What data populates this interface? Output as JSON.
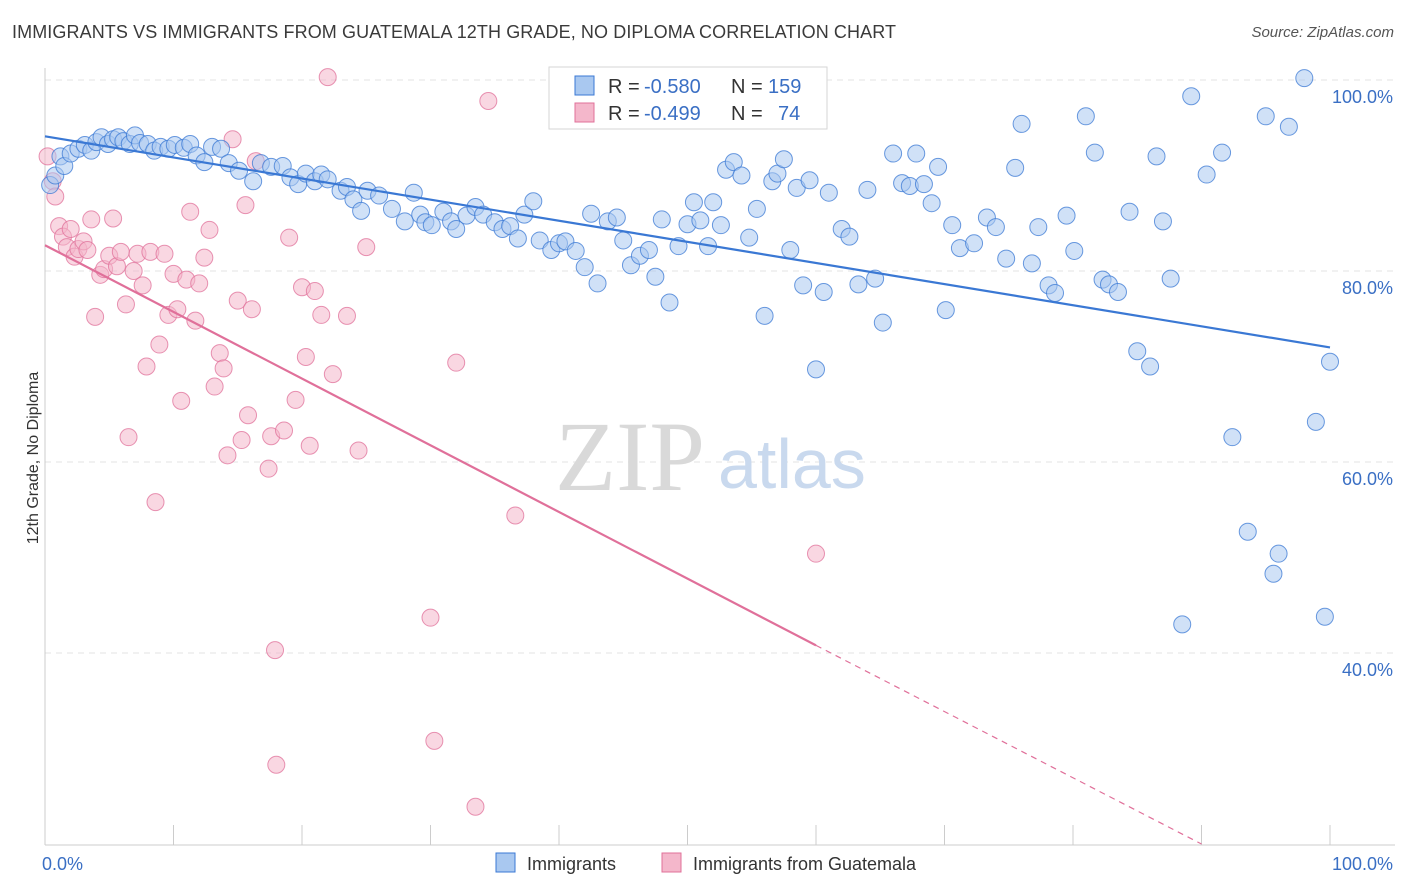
{
  "title": "IMMIGRANTS VS IMMIGRANTS FROM GUATEMALA 12TH GRADE, NO DIPLOMA CORRELATION CHART",
  "source": "Source: ZipAtlas.com",
  "watermark": {
    "zip": "ZIP",
    "atlas": "atlas"
  },
  "colors": {
    "blue": "#3a78d4",
    "blue_fill": "#a9c8f0",
    "pink": "#e0709a",
    "pink_fill": "#f4b7cb",
    "grid": "#e3e3e3",
    "axis_label": "#3a6fc4"
  },
  "legend_top": {
    "rows": [
      {
        "r_label": "R =",
        "r_value": "-0.580",
        "n_label": "N =",
        "n_value": "159"
      },
      {
        "r_label": "R =",
        "r_value": "-0.499",
        "n_label": "N =",
        "n_value": "74"
      }
    ]
  },
  "chart_data": {
    "type": "scatter",
    "title": "IMMIGRANTS VS IMMIGRANTS FROM GUATEMALA 12TH GRADE, NO DIPLOMA CORRELATION CHART",
    "xlabel": "",
    "ylabel": "12th Grade, No Diploma",
    "xlim": [
      0,
      100
    ],
    "ylim": [
      20,
      102
    ],
    "x_tick_labels": [
      "0.0%",
      "100.0%"
    ],
    "y_tick_labels": [
      "100.0%",
      "80.0%",
      "60.0%",
      "40.0%"
    ],
    "y_ticks": [
      100,
      80,
      60,
      40
    ],
    "grid": true,
    "legend_position": "bottom",
    "series": [
      {
        "name": "Immigrants",
        "color": "#3a78d4",
        "r": -0.58,
        "n": 159,
        "trend": {
          "x": [
            0,
            100
          ],
          "y": [
            94.1,
            72.0
          ]
        },
        "points": [
          [
            0.4,
            89
          ],
          [
            0.8,
            90
          ],
          [
            1.2,
            92
          ],
          [
            1.5,
            91
          ],
          [
            2,
            92.3
          ],
          [
            2.6,
            92.8
          ],
          [
            3.1,
            93.2
          ],
          [
            3.6,
            92.6
          ],
          [
            4,
            93.5
          ],
          [
            4.4,
            94
          ],
          [
            4.9,
            93.3
          ],
          [
            5.3,
            93.8
          ],
          [
            5.7,
            94
          ],
          [
            6.1,
            93.6
          ],
          [
            6.6,
            93.3
          ],
          [
            7,
            94.2
          ],
          [
            7.4,
            93.4
          ],
          [
            8,
            93.3
          ],
          [
            8.5,
            92.6
          ],
          [
            9,
            93
          ],
          [
            9.6,
            92.8
          ],
          [
            10.1,
            93.2
          ],
          [
            10.8,
            92.9
          ],
          [
            11.3,
            93.3
          ],
          [
            11.8,
            92.1
          ],
          [
            12.4,
            91.4
          ],
          [
            13,
            93
          ],
          [
            13.7,
            92.8
          ],
          [
            14.3,
            91.3
          ],
          [
            15.1,
            90.5
          ],
          [
            16.2,
            89.4
          ],
          [
            16.8,
            91.3
          ],
          [
            17.6,
            90.9
          ],
          [
            18.5,
            91
          ],
          [
            19.1,
            89.8
          ],
          [
            19.7,
            89.1
          ],
          [
            20.3,
            90.2
          ],
          [
            21,
            89.4
          ],
          [
            21.5,
            90.1
          ],
          [
            22,
            89.6
          ],
          [
            23,
            88.4
          ],
          [
            23.5,
            88.8
          ],
          [
            24,
            87.5
          ],
          [
            24.6,
            86.3
          ],
          [
            25.1,
            88.4
          ],
          [
            26,
            87.9
          ],
          [
            27,
            86.5
          ],
          [
            28,
            85.2
          ],
          [
            28.7,
            88.2
          ],
          [
            29.2,
            85.9
          ],
          [
            29.6,
            85.1
          ],
          [
            30.1,
            84.8
          ],
          [
            31,
            86.2
          ],
          [
            31.6,
            85.2
          ],
          [
            32,
            84.4
          ],
          [
            32.8,
            85.8
          ],
          [
            33.5,
            86.7
          ],
          [
            34.1,
            85.9
          ],
          [
            35,
            85.1
          ],
          [
            35.6,
            84.4
          ],
          [
            36.2,
            84.7
          ],
          [
            36.8,
            83.4
          ],
          [
            37.3,
            85.9
          ],
          [
            38,
            87.3
          ],
          [
            38.5,
            83.2
          ],
          [
            39.4,
            82.2
          ],
          [
            40,
            82.9
          ],
          [
            40.5,
            83.1
          ],
          [
            41.3,
            82.1
          ],
          [
            42,
            80.4
          ],
          [
            42.5,
            86
          ],
          [
            43,
            78.7
          ],
          [
            43.8,
            85.2
          ],
          [
            44.5,
            85.6
          ],
          [
            45,
            83.2
          ],
          [
            45.6,
            80.6
          ],
          [
            46.3,
            81.6
          ],
          [
            47,
            82.2
          ],
          [
            47.5,
            79.4
          ],
          [
            48,
            85.4
          ],
          [
            48.6,
            76.7
          ],
          [
            49.3,
            82.6
          ],
          [
            50,
            84.9
          ],
          [
            50.5,
            87.2
          ],
          [
            51,
            85.3
          ],
          [
            51.6,
            82.6
          ],
          [
            52,
            87.2
          ],
          [
            52.6,
            84.8
          ],
          [
            53,
            90.6
          ],
          [
            53.6,
            91.4
          ],
          [
            54.2,
            90
          ],
          [
            54.8,
            83.5
          ],
          [
            55.4,
            86.5
          ],
          [
            56,
            75.3
          ],
          [
            56.6,
            89.4
          ],
          [
            57,
            90.2
          ],
          [
            57.5,
            91.7
          ],
          [
            58,
            82.2
          ],
          [
            58.5,
            88.7
          ],
          [
            59,
            78.5
          ],
          [
            59.5,
            89.5
          ],
          [
            60,
            69.7
          ],
          [
            60.6,
            77.8
          ],
          [
            61,
            88.2
          ],
          [
            62,
            84.4
          ],
          [
            62.6,
            83.6
          ],
          [
            63.3,
            78.6
          ],
          [
            64,
            88.5
          ],
          [
            64.6,
            79.2
          ],
          [
            65.2,
            74.6
          ],
          [
            66,
            92.3
          ],
          [
            66.7,
            89.2
          ],
          [
            67.3,
            88.9
          ],
          [
            67.8,
            92.3
          ],
          [
            68.4,
            89.1
          ],
          [
            69,
            87.1
          ],
          [
            69.5,
            90.9
          ],
          [
            70.1,
            75.9
          ],
          [
            70.6,
            84.8
          ],
          [
            71.2,
            82.4
          ],
          [
            72.3,
            82.9
          ],
          [
            73.3,
            85.6
          ],
          [
            74,
            84.6
          ],
          [
            74.8,
            81.3
          ],
          [
            75.5,
            90.8
          ],
          [
            76,
            95.4
          ],
          [
            76.8,
            80.8
          ],
          [
            77.3,
            84.6
          ],
          [
            78.1,
            78.5
          ],
          [
            78.6,
            77.7
          ],
          [
            79.5,
            85.8
          ],
          [
            80.1,
            82.1
          ],
          [
            81,
            96.2
          ],
          [
            81.7,
            92.4
          ],
          [
            82.3,
            79.1
          ],
          [
            82.8,
            78.6
          ],
          [
            83.5,
            77.8
          ],
          [
            84.4,
            86.2
          ],
          [
            85,
            71.6
          ],
          [
            86,
            70
          ],
          [
            86.5,
            92
          ],
          [
            87,
            85.2
          ],
          [
            87.6,
            79.2
          ],
          [
            88.5,
            43
          ],
          [
            89.2,
            98.3
          ],
          [
            90.4,
            90.1
          ],
          [
            91.6,
            92.4
          ],
          [
            92.4,
            62.6
          ],
          [
            93.6,
            52.7
          ],
          [
            95,
            96.2
          ],
          [
            95.6,
            48.3
          ],
          [
            96,
            50.4
          ],
          [
            96.8,
            95.1
          ],
          [
            98,
            100.2
          ],
          [
            98.9,
            64.2
          ],
          [
            99.6,
            43.8
          ],
          [
            100,
            70.5
          ]
        ]
      },
      {
        "name": "Immigrants from Guatemala",
        "color": "#e0709a",
        "r": -0.499,
        "n": 74,
        "trend": {
          "x": [
            0,
            60
          ],
          "y": [
            82.7,
            40.8
          ]
        },
        "trend_dashed": {
          "x": [
            60,
            90
          ],
          "y": [
            40.8,
            20
          ]
        },
        "points": [
          [
            0.2,
            92
          ],
          [
            0.6,
            89.4
          ],
          [
            0.8,
            87.8
          ],
          [
            1.1,
            84.7
          ],
          [
            1.4,
            83.6
          ],
          [
            1.7,
            82.5
          ],
          [
            2,
            84.4
          ],
          [
            2.3,
            81.5
          ],
          [
            2.6,
            82.3
          ],
          [
            3,
            83.1
          ],
          [
            3.3,
            82.2
          ],
          [
            3.6,
            85.4
          ],
          [
            3.9,
            75.2
          ],
          [
            4.3,
            79.6
          ],
          [
            4.6,
            80.2
          ],
          [
            5,
            81.6
          ],
          [
            5.3,
            85.5
          ],
          [
            5.6,
            80.5
          ],
          [
            5.9,
            82
          ],
          [
            6.3,
            76.5
          ],
          [
            6.5,
            62.6
          ],
          [
            6.9,
            80
          ],
          [
            7.2,
            81.8
          ],
          [
            7.6,
            78.5
          ],
          [
            7.9,
            70
          ],
          [
            8.2,
            82
          ],
          [
            8.6,
            55.8
          ],
          [
            8.9,
            72.3
          ],
          [
            9.3,
            81.8
          ],
          [
            9.6,
            75.4
          ],
          [
            10,
            79.7
          ],
          [
            10.3,
            76
          ],
          [
            10.6,
            66.4
          ],
          [
            11,
            79.1
          ],
          [
            11.3,
            86.2
          ],
          [
            11.7,
            74.8
          ],
          [
            12,
            78.7
          ],
          [
            12.4,
            81.4
          ],
          [
            12.8,
            84.3
          ],
          [
            13.2,
            67.9
          ],
          [
            13.6,
            71.4
          ],
          [
            13.9,
            69.8
          ],
          [
            14.2,
            60.7
          ],
          [
            14.6,
            93.8
          ],
          [
            15,
            76.9
          ],
          [
            15.3,
            62.3
          ],
          [
            15.6,
            86.9
          ],
          [
            15.8,
            64.9
          ],
          [
            16.1,
            76
          ],
          [
            16.4,
            91.5
          ],
          [
            17.4,
            59.3
          ],
          [
            17.6,
            62.7
          ],
          [
            17.9,
            40.3
          ],
          [
            18,
            28.3
          ],
          [
            18.6,
            63.3
          ],
          [
            19,
            83.5
          ],
          [
            19.5,
            66.5
          ],
          [
            20,
            78.3
          ],
          [
            20.3,
            71
          ],
          [
            20.6,
            61.7
          ],
          [
            21,
            77.9
          ],
          [
            21.5,
            75.4
          ],
          [
            22,
            100.3
          ],
          [
            22.4,
            69.2
          ],
          [
            23.5,
            75.3
          ],
          [
            24.4,
            61.2
          ],
          [
            25,
            82.5
          ],
          [
            30,
            43.7
          ],
          [
            30.3,
            30.8
          ],
          [
            32,
            70.4
          ],
          [
            33.5,
            23.9
          ],
          [
            34.5,
            97.8
          ],
          [
            36.6,
            54.4
          ],
          [
            60,
            50.4
          ]
        ]
      }
    ]
  },
  "bottom_legend": {
    "items": [
      "Immigrants",
      "Immigrants from Guatemala"
    ]
  }
}
